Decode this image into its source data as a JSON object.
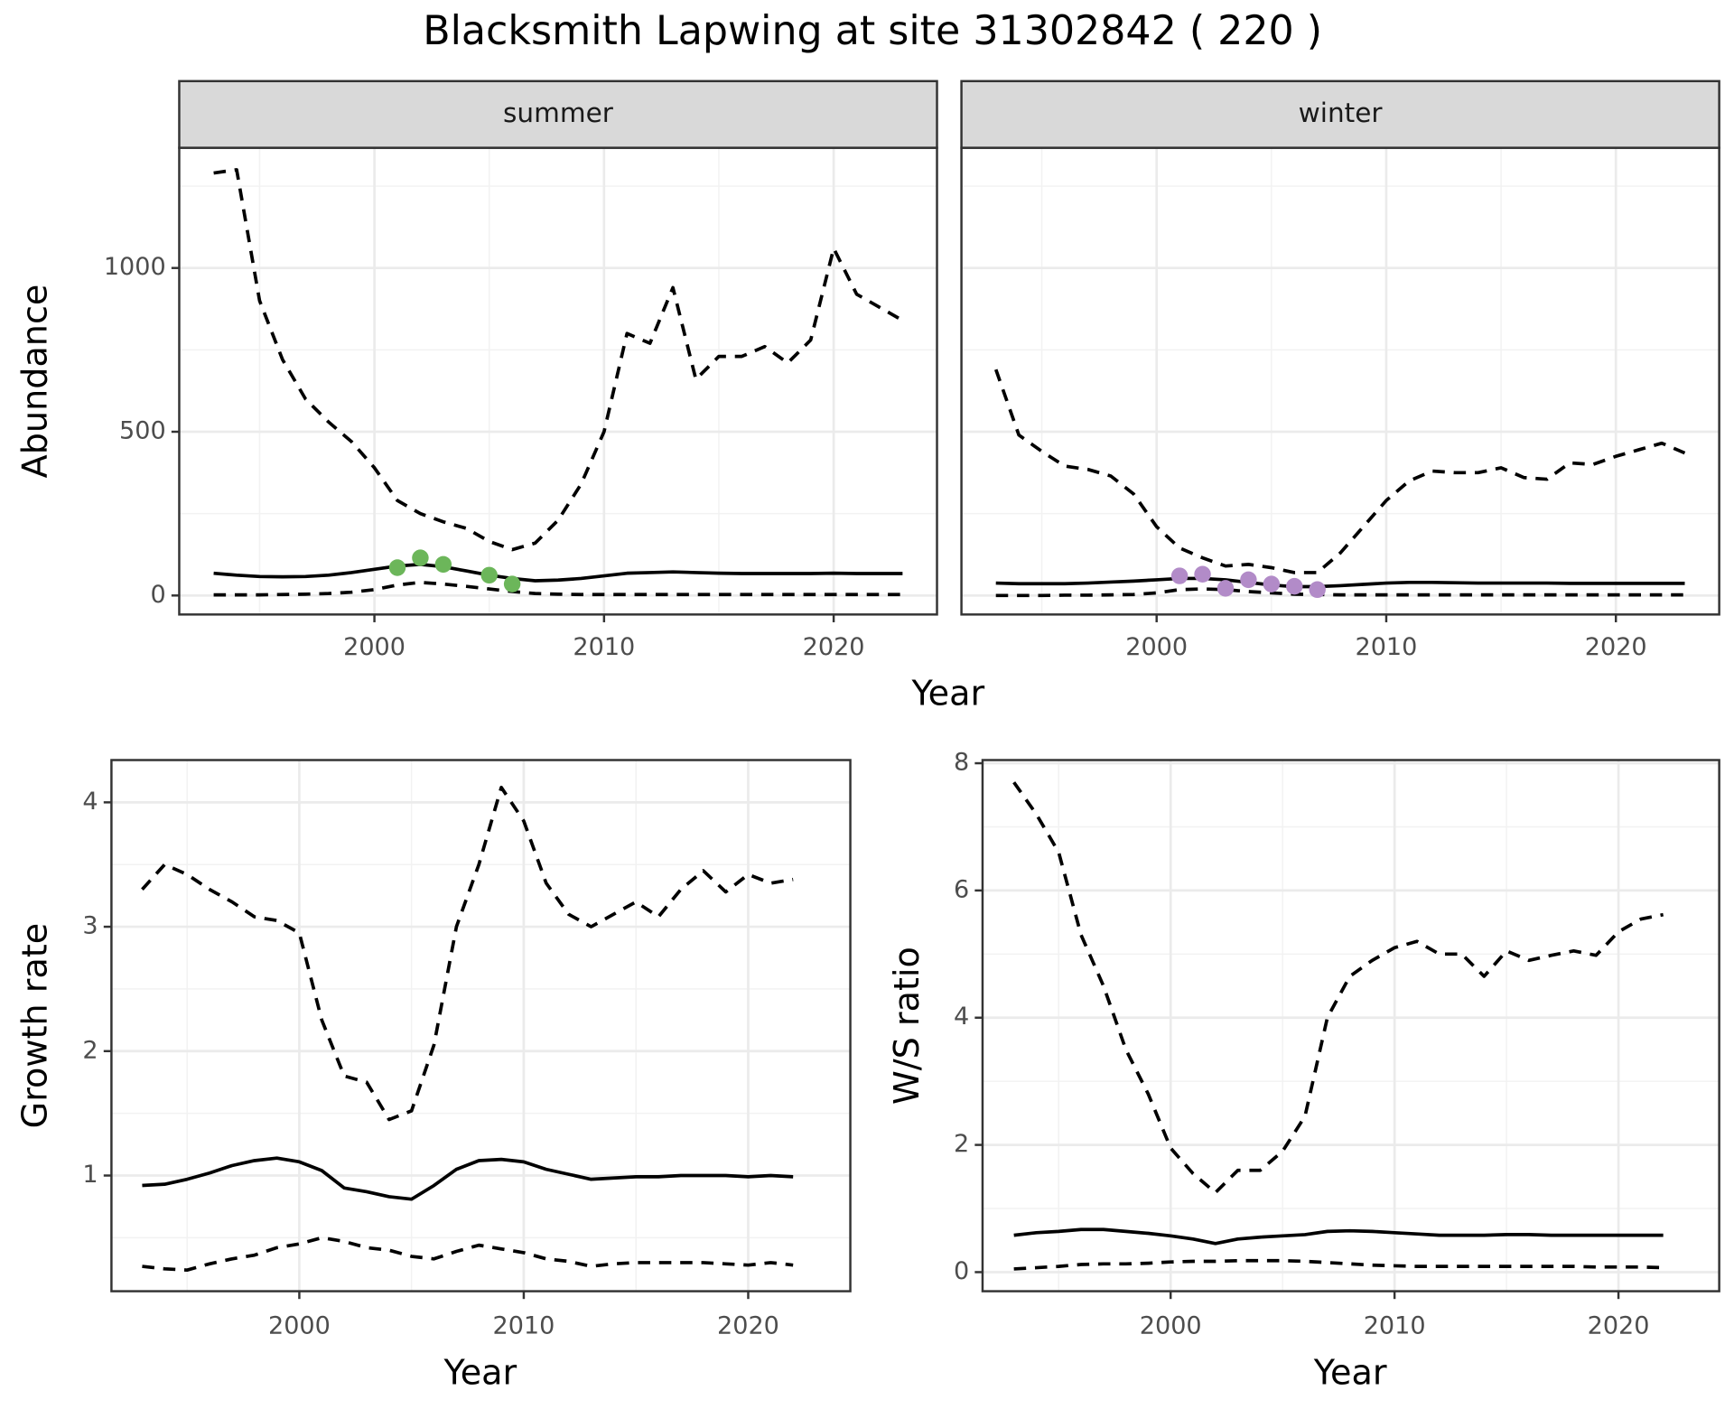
{
  "title": "Blacksmith Lapwing at site 31302842 ( 220 )",
  "chart_data": [
    {
      "type": "line",
      "strip": "summer",
      "ylabel": "Abundance",
      "xlabel": "Year",
      "x": [
        1993,
        1994,
        1995,
        1996,
        1997,
        1998,
        1999,
        2000,
        2001,
        2002,
        2003,
        2004,
        2005,
        2006,
        2007,
        2008,
        2009,
        2010,
        2011,
        2012,
        2013,
        2014,
        2015,
        2016,
        2017,
        2018,
        2019,
        2020,
        2021,
        2022,
        2023
      ],
      "xlim": [
        1991.5,
        2024.5
      ],
      "xticks": [
        2000,
        2010,
        2020
      ],
      "ylim": [
        -58,
        1367
      ],
      "yticks": [
        0,
        500,
        1000
      ],
      "grid": true,
      "series": [
        {
          "color": "#000000",
          "dashed": true,
          "values": [
            1290,
            1300,
            900,
            720,
            600,
            530,
            470,
            390,
            290,
            250,
            225,
            205,
            165,
            140,
            160,
            230,
            340,
            500,
            800,
            770,
            940,
            660,
            730,
            730,
            760,
            710,
            780,
            1060,
            920,
            880,
            840
          ]
        },
        {
          "color": "#000000",
          "dashed": false,
          "values": [
            68,
            62,
            58,
            57,
            58,
            62,
            70,
            80,
            90,
            95,
            88,
            75,
            62,
            52,
            45,
            47,
            52,
            60,
            68,
            70,
            72,
            70,
            68,
            67,
            67,
            67,
            67,
            68,
            67,
            67,
            67
          ]
        },
        {
          "color": "#000000",
          "dashed": true,
          "values": [
            2,
            2,
            2,
            3,
            4,
            6,
            10,
            18,
            32,
            40,
            35,
            28,
            20,
            12,
            6,
            4,
            3,
            3,
            3,
            3,
            3,
            3,
            3,
            3,
            3,
            3,
            3,
            3,
            3,
            3,
            3
          ]
        }
      ],
      "points": {
        "color": "#6cb65a",
        "x": [
          2001,
          2002,
          2003,
          2005,
          2006
        ],
        "values": [
          85,
          115,
          95,
          62,
          35
        ]
      }
    },
    {
      "type": "line",
      "strip": "winter",
      "x": [
        1993,
        1994,
        1995,
        1996,
        1997,
        1998,
        1999,
        2000,
        2001,
        2002,
        2003,
        2004,
        2005,
        2006,
        2007,
        2008,
        2009,
        2010,
        2011,
        2012,
        2013,
        2014,
        2015,
        2016,
        2017,
        2018,
        2019,
        2020,
        2021,
        2022,
        2023
      ],
      "xlim": [
        1991.5,
        2024.5
      ],
      "xticks": [
        2000,
        2010,
        2020
      ],
      "ylim": [
        -58,
        1367
      ],
      "yticks": [
        0,
        500,
        1000
      ],
      "grid": true,
      "series": [
        {
          "color": "#000000",
          "dashed": true,
          "values": [
            690,
            490,
            440,
            395,
            385,
            365,
            310,
            210,
            145,
            115,
            90,
            95,
            85,
            70,
            70,
            130,
            210,
            290,
            350,
            380,
            375,
            375,
            390,
            360,
            355,
            405,
            400,
            425,
            445,
            465,
            435
          ]
        },
        {
          "color": "#000000",
          "dashed": false,
          "values": [
            38,
            36,
            36,
            36,
            38,
            41,
            44,
            48,
            52,
            52,
            48,
            40,
            32,
            27,
            27,
            30,
            34,
            38,
            40,
            40,
            39,
            38,
            38,
            38,
            38,
            37,
            37,
            37,
            37,
            37,
            37
          ]
        },
        {
          "color": "#000000",
          "dashed": true,
          "values": [
            0,
            0,
            0,
            1,
            1,
            2,
            3,
            8,
            18,
            20,
            18,
            12,
            8,
            4,
            3,
            2,
            2,
            2,
            2,
            2,
            2,
            2,
            2,
            2,
            2,
            2,
            2,
            2,
            2,
            2,
            2
          ]
        }
      ],
      "points": {
        "color": "#b28bc8",
        "x": [
          2001,
          2002,
          2003,
          2004,
          2005,
          2006,
          2007
        ],
        "values": [
          60,
          65,
          22,
          48,
          35,
          28,
          18
        ]
      }
    },
    {
      "type": "line",
      "ylabel": "Growth rate",
      "xlabel": "Year",
      "x": [
        1993,
        1994,
        1995,
        1996,
        1997,
        1998,
        1999,
        2000,
        2001,
        2002,
        2003,
        2004,
        2005,
        2006,
        2007,
        2008,
        2009,
        2010,
        2011,
        2012,
        2013,
        2014,
        2015,
        2016,
        2017,
        2018,
        2019,
        2020,
        2021,
        2022
      ],
      "xlim": [
        1991.63,
        2024.55
      ],
      "xticks": [
        2000,
        2010,
        2020
      ],
      "ylim": [
        0.07,
        4.34
      ],
      "yticks": [
        1,
        2,
        3,
        4
      ],
      "grid": true,
      "series": [
        {
          "color": "#000000",
          "dashed": true,
          "values": [
            3.3,
            3.5,
            3.42,
            3.3,
            3.2,
            3.08,
            3.05,
            2.95,
            2.25,
            1.8,
            1.75,
            1.45,
            1.52,
            2.05,
            3.0,
            3.5,
            4.12,
            3.85,
            3.35,
            3.1,
            3.0,
            3.1,
            3.2,
            3.08,
            3.3,
            3.45,
            3.28,
            3.42,
            3.35,
            3.38
          ]
        },
        {
          "color": "#000000",
          "dashed": false,
          "values": [
            0.92,
            0.93,
            0.97,
            1.02,
            1.08,
            1.12,
            1.14,
            1.11,
            1.04,
            0.9,
            0.87,
            0.83,
            0.81,
            0.92,
            1.05,
            1.12,
            1.13,
            1.11,
            1.05,
            1.01,
            0.97,
            0.98,
            0.99,
            0.99,
            1.0,
            1.0,
            1.0,
            0.99,
            1.0,
            0.99
          ]
        },
        {
          "color": "#000000",
          "dashed": true,
          "values": [
            0.27,
            0.25,
            0.24,
            0.29,
            0.33,
            0.36,
            0.42,
            0.45,
            0.5,
            0.47,
            0.42,
            0.4,
            0.35,
            0.33,
            0.39,
            0.44,
            0.41,
            0.38,
            0.33,
            0.31,
            0.27,
            0.29,
            0.3,
            0.3,
            0.3,
            0.3,
            0.29,
            0.28,
            0.3,
            0.28
          ]
        }
      ]
    },
    {
      "type": "line",
      "ylabel": "W/S ratio",
      "xlabel": "Year",
      "x": [
        1993,
        1994,
        1995,
        1996,
        1997,
        1998,
        1999,
        2000,
        2001,
        2002,
        2003,
        2004,
        2005,
        2006,
        2007,
        2008,
        2009,
        2010,
        2011,
        2012,
        2013,
        2014,
        2015,
        2016,
        2017,
        2018,
        2019,
        2020,
        2021,
        2022
      ],
      "xlim": [
        1991.6,
        2024.5
      ],
      "xticks": [
        2000,
        2010,
        2020
      ],
      "ylim": [
        -0.3,
        8.05
      ],
      "yticks": [
        0,
        2,
        4,
        6,
        8
      ],
      "grid": true,
      "series": [
        {
          "color": "#000000",
          "dashed": true,
          "values": [
            7.7,
            7.2,
            6.6,
            5.3,
            4.5,
            3.5,
            2.8,
            1.95,
            1.55,
            1.25,
            1.6,
            1.6,
            1.9,
            2.45,
            4.0,
            4.65,
            4.9,
            5.1,
            5.2,
            5.0,
            5.0,
            4.65,
            5.05,
            4.9,
            4.98,
            5.05,
            4.98,
            5.35,
            5.55,
            5.62
          ]
        },
        {
          "color": "#000000",
          "dashed": false,
          "values": [
            0.58,
            0.62,
            0.64,
            0.67,
            0.67,
            0.64,
            0.61,
            0.57,
            0.52,
            0.45,
            0.52,
            0.55,
            0.57,
            0.59,
            0.64,
            0.65,
            0.64,
            0.62,
            0.6,
            0.58,
            0.58,
            0.58,
            0.59,
            0.59,
            0.58,
            0.58,
            0.58,
            0.58,
            0.58,
            0.58
          ]
        },
        {
          "color": "#000000",
          "dashed": true,
          "values": [
            0.05,
            0.07,
            0.09,
            0.12,
            0.13,
            0.13,
            0.14,
            0.16,
            0.17,
            0.17,
            0.18,
            0.18,
            0.18,
            0.17,
            0.15,
            0.13,
            0.11,
            0.1,
            0.09,
            0.09,
            0.09,
            0.09,
            0.09,
            0.09,
            0.09,
            0.09,
            0.08,
            0.08,
            0.08,
            0.07
          ]
        }
      ]
    }
  ]
}
